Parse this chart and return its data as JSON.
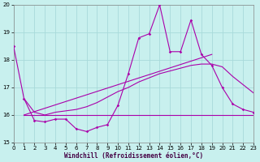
{
  "xlabel": "Windchill (Refroidissement éolien,°C)",
  "xlim": [
    0,
    23
  ],
  "ylim": [
    15,
    20
  ],
  "xticks": [
    0,
    1,
    2,
    3,
    4,
    5,
    6,
    7,
    8,
    9,
    10,
    11,
    12,
    13,
    14,
    15,
    16,
    17,
    18,
    19,
    20,
    21,
    22,
    23
  ],
  "yticks": [
    15,
    16,
    17,
    18,
    19,
    20
  ],
  "background_color": "#c8f0ee",
  "grid_color": "#a8dada",
  "line_color": "#aa00aa",
  "line1_x": [
    0,
    1,
    2,
    3,
    4,
    5,
    6,
    7,
    8,
    9,
    10,
    11,
    12,
    13,
    14,
    15,
    16,
    17,
    18,
    19,
    20,
    21,
    22,
    23
  ],
  "line1_y": [
    18.5,
    16.6,
    15.8,
    15.75,
    15.85,
    15.85,
    15.5,
    15.4,
    15.55,
    15.65,
    16.35,
    17.5,
    18.8,
    18.95,
    20.0,
    18.3,
    18.3,
    19.45,
    18.2,
    17.8,
    17.0,
    16.4,
    16.2,
    16.1
  ],
  "line2_x": [
    1,
    2,
    3,
    4,
    5,
    6,
    7,
    8,
    9,
    10,
    11,
    12,
    13,
    14,
    15,
    16,
    17,
    18,
    19,
    20,
    21,
    22,
    23
  ],
  "line2_y": [
    16.0,
    16.0,
    16.0,
    16.0,
    16.0,
    16.0,
    16.0,
    16.0,
    16.0,
    16.0,
    16.0,
    16.0,
    16.0,
    16.0,
    16.0,
    16.0,
    16.0,
    16.0,
    16.0,
    16.0,
    16.0,
    16.0,
    16.0
  ],
  "line3_x": [
    1,
    2,
    3,
    4,
    5,
    6,
    7,
    8,
    9,
    10,
    11,
    12,
    13,
    14,
    15,
    16,
    17,
    18,
    19,
    20,
    21,
    22,
    23
  ],
  "line3_y": [
    16.6,
    16.1,
    16.0,
    16.1,
    16.15,
    16.2,
    16.3,
    16.45,
    16.65,
    16.85,
    17.0,
    17.2,
    17.35,
    17.5,
    17.6,
    17.7,
    17.8,
    17.85,
    17.85,
    17.75,
    17.4,
    17.1,
    16.8
  ],
  "line4_x": [
    1,
    19
  ],
  "line4_y": [
    16.0,
    18.2
  ]
}
